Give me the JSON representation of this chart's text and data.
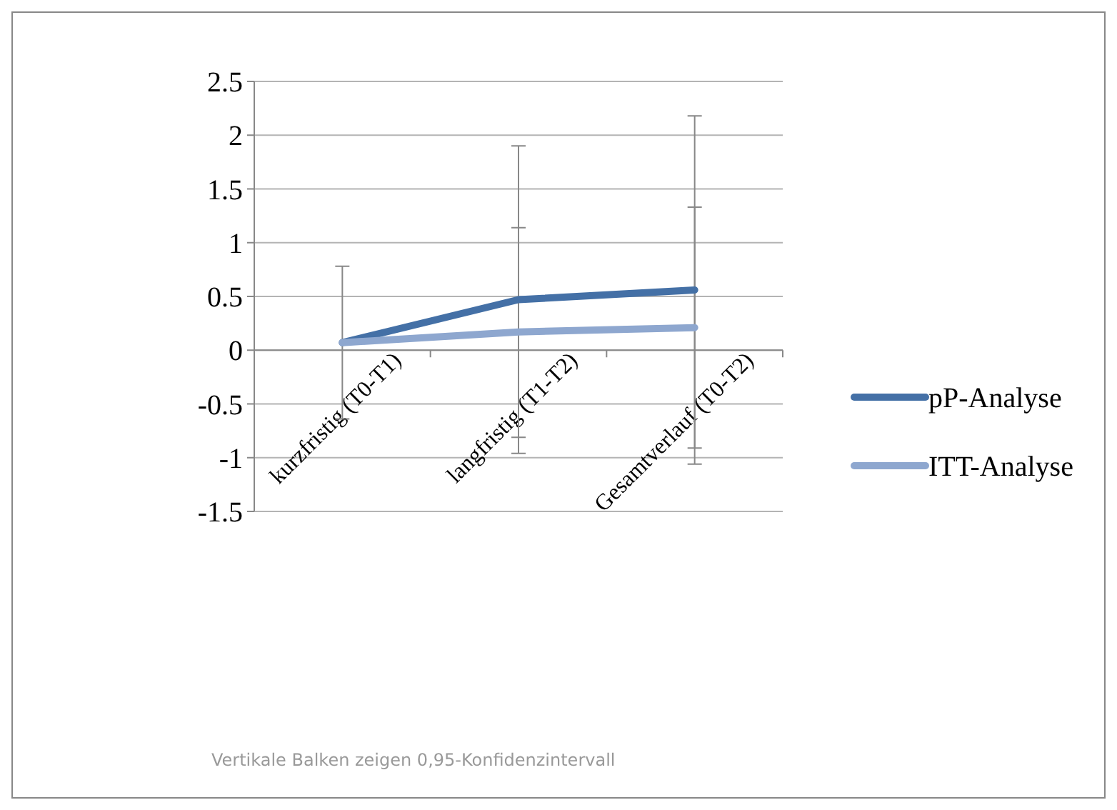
{
  "chart_data": {
    "type": "line",
    "categories": [
      "kurzfristig (T0-T1)",
      "langfristig (T1-T2)",
      "Gesamtverlauf (T0-T2)"
    ],
    "series": [
      {
        "name": "pP-Analyse",
        "color": "#4470a6",
        "values": [
          0.07,
          0.47,
          0.56
        ],
        "errors": [
          [
            -0.64,
            0.78
          ],
          [
            -0.96,
            1.9
          ],
          [
            -1.06,
            2.18
          ]
        ]
      },
      {
        "name": "ITT-Analyse",
        "color": "#8ea7cf",
        "values": [
          0.07,
          0.17,
          0.21
        ],
        "errors": [
          null,
          [
            -0.81,
            1.14
          ],
          [
            -0.91,
            1.33
          ]
        ]
      }
    ],
    "ylim": [
      -1.5,
      2.5
    ],
    "yticks": [
      {
        "value": -1.5,
        "label": "-1.5"
      },
      {
        "value": -1,
        "label": "-1"
      },
      {
        "value": -0.5,
        "label": "-0.5"
      },
      0,
      0.5,
      1,
      1.5,
      2,
      2.5
    ],
    "grid": "y",
    "legend": "right",
    "marker": "none",
    "line_style": "solid",
    "annotations": [
      "Vertikale Balken zeigen 0,95-Konfidenzintervall"
    ]
  }
}
